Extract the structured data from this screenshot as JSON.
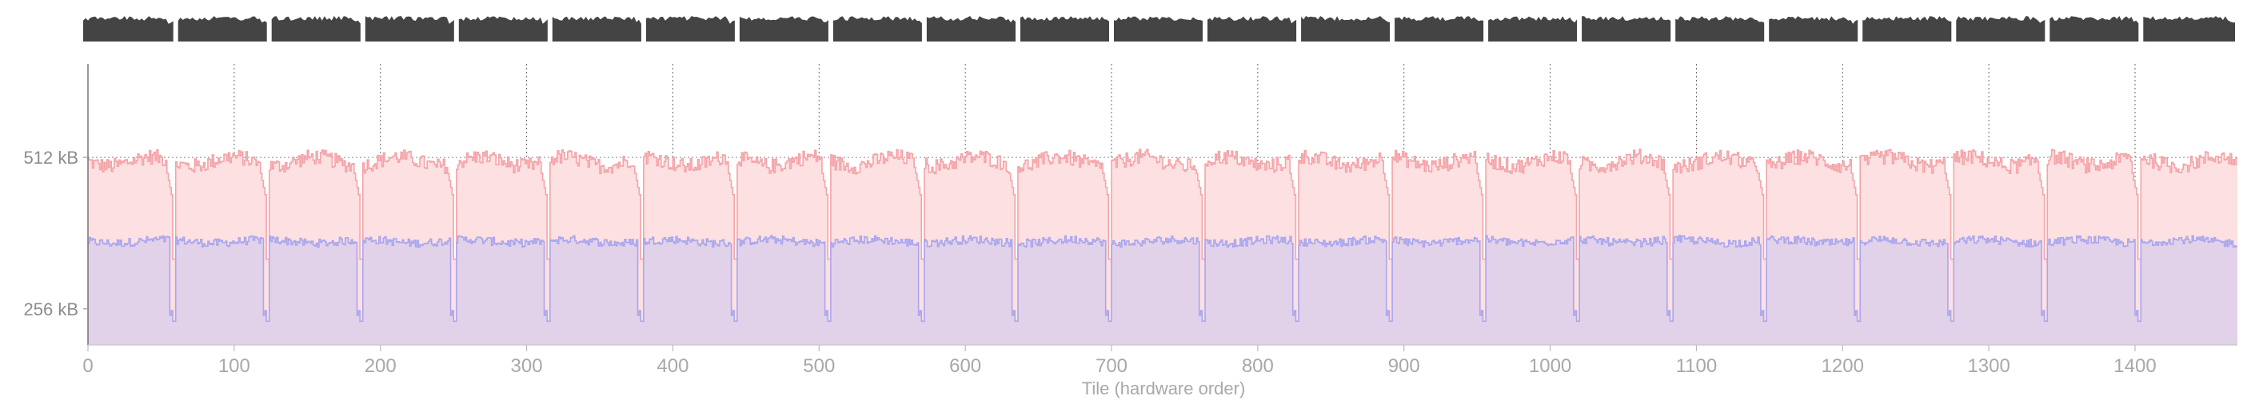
{
  "chart_data": {
    "type": "area",
    "title": "",
    "xlabel": "Tile (hardware order)",
    "ylabel": "",
    "x_ticks": [
      0,
      100,
      200,
      300,
      400,
      500,
      600,
      700,
      800,
      900,
      1000,
      1100,
      1200,
      1300,
      1400
    ],
    "y_ticks": [
      {
        "value": 256,
        "label": "256 kB"
      },
      {
        "value": 512,
        "label": "512 kB"
      }
    ],
    "xlim": [
      0,
      1470
    ],
    "ylim": [
      195,
      670
    ],
    "grid": "vertical dotted lines at x ticks, horizontal dotted lines at y ticks",
    "legend": "none",
    "group_boundaries": [
      0,
      60,
      124,
      188,
      252,
      316,
      380,
      444,
      508,
      572,
      636,
      700,
      764,
      828,
      892,
      956,
      1020,
      1084,
      1148,
      1212,
      1276,
      1340,
      1404,
      1470
    ],
    "series": [
      {
        "id": "upper",
        "color": "#f4a3a8",
        "fill": "#fde0e1",
        "typical_value": 505,
        "dip_value": 300
      },
      {
        "id": "lower",
        "color": "#a9a6ee",
        "fill": "#e1d2ea",
        "typical_value": 370,
        "dip_value": 235
      }
    ],
    "top_strip": {
      "color": "#444444",
      "segment_count": 23
    }
  }
}
